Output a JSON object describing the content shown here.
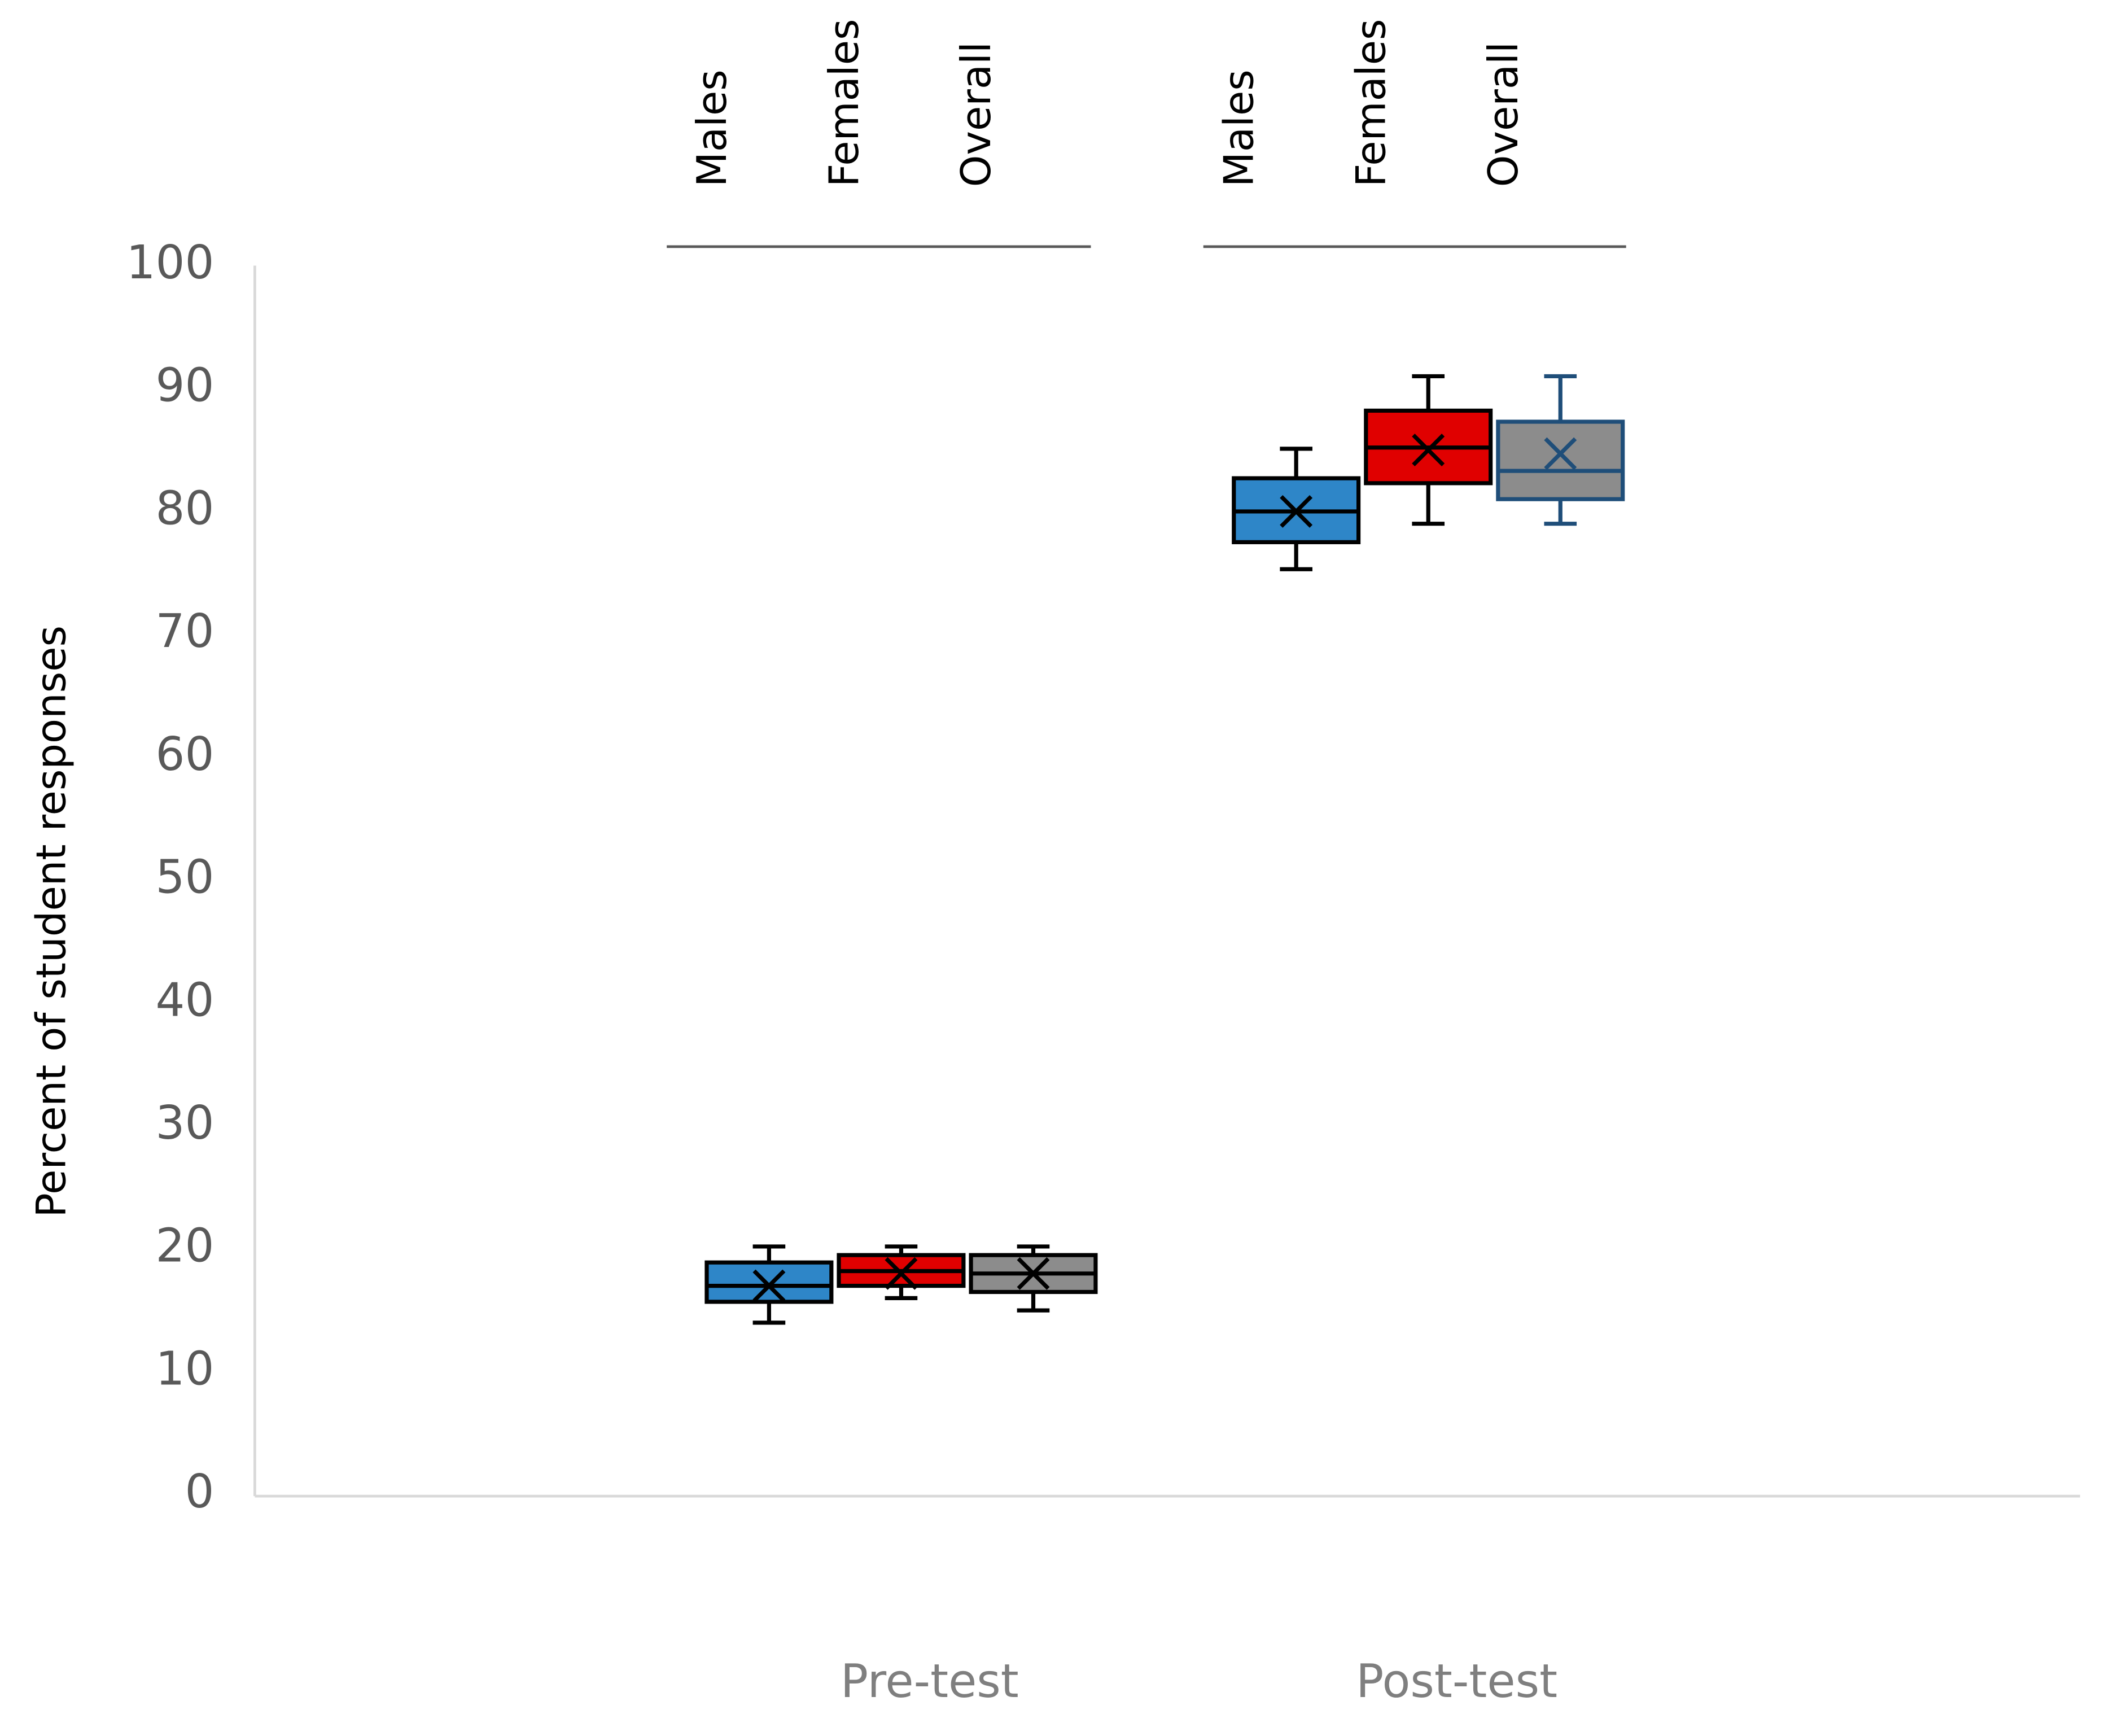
{
  "chart_data": {
    "type": "box",
    "y_label": "Percent of student responses",
    "categories": [
      "Pre-test",
      "Post-test"
    ],
    "ylim": [
      0,
      100
    ],
    "yticks": [
      0,
      10,
      20,
      30,
      40,
      50,
      60,
      70,
      80,
      90,
      100
    ],
    "series": [
      {
        "name": "Males",
        "color": "#2e86c8",
        "edgecolor": [
          "#000000",
          "#000000"
        ],
        "min": [
          14,
          75.3
        ],
        "q1": [
          15.7,
          77.5
        ],
        "median": [
          17,
          80
        ],
        "q3": [
          18.9,
          82.7
        ],
        "max": [
          20.2,
          85.1
        ],
        "mean": [
          17,
          80
        ]
      },
      {
        "name": "Females",
        "color": "#e00000",
        "edgecolor": [
          "#000000",
          "#000000"
        ],
        "min": [
          16,
          79
        ],
        "q1": [
          17,
          82.3
        ],
        "median": [
          18.2,
          85.2
        ],
        "q3": [
          19.5,
          88.2
        ],
        "max": [
          20.2,
          91
        ],
        "mean": [
          18,
          85
        ]
      },
      {
        "name": "Overall",
        "color": "#8c8c8c",
        "edgecolor": [
          "#000000",
          "#1f4e79"
        ],
        "min": [
          15,
          79
        ],
        "q1": [
          16.5,
          81
        ],
        "median": [
          18,
          83.3
        ],
        "q3": [
          19.5,
          87.3
        ],
        "max": [
          20.2,
          91
        ],
        "mean": [
          18,
          84.7
        ]
      }
    ]
  }
}
